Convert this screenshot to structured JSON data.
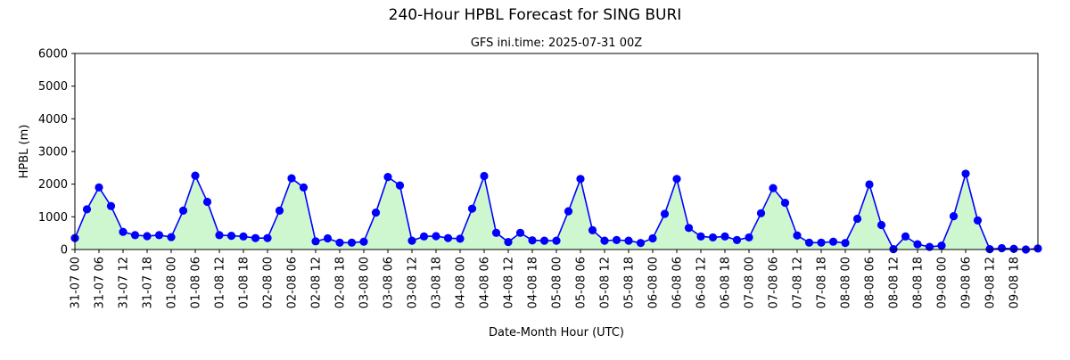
{
  "chart_data": {
    "type": "line",
    "title": "240-Hour HPBL Forecast for SING BURI",
    "subtitle": "GFS ini.time: 2025-07-31 00Z",
    "xlabel": "Date-Month Hour (UTC)",
    "ylabel": "HPBL (m)",
    "ylim": [
      0,
      6000
    ],
    "yticks": [
      0,
      1000,
      2000,
      3000,
      4000,
      5000,
      6000
    ],
    "grid": false,
    "legend": "none",
    "fill_under": true,
    "colors": {
      "line": "#0000ff",
      "marker": "#0000ff",
      "fill": "#cff7cf",
      "axes": "#000000"
    },
    "x": [
      "31-07 00",
      "31-07 03",
      "31-07 06",
      "31-07 09",
      "31-07 12",
      "31-07 15",
      "31-07 18",
      "31-07 21",
      "01-08 00",
      "01-08 03",
      "01-08 06",
      "01-08 09",
      "01-08 12",
      "01-08 15",
      "01-08 18",
      "01-08 21",
      "02-08 00",
      "02-08 03",
      "02-08 06",
      "02-08 09",
      "02-08 12",
      "02-08 15",
      "02-08 18",
      "02-08 21",
      "03-08 00",
      "03-08 03",
      "03-08 06",
      "03-08 09",
      "03-08 12",
      "03-08 15",
      "03-08 18",
      "03-08 21",
      "04-08 00",
      "04-08 03",
      "04-08 06",
      "04-08 09",
      "04-08 12",
      "04-08 15",
      "04-08 18",
      "04-08 21",
      "05-08 00",
      "05-08 03",
      "05-08 06",
      "05-08 09",
      "05-08 12",
      "05-08 15",
      "05-08 18",
      "05-08 21",
      "06-08 00",
      "06-08 03",
      "06-08 06",
      "06-08 09",
      "06-08 12",
      "06-08 15",
      "06-08 18",
      "06-08 21",
      "07-08 00",
      "07-08 03",
      "07-08 06",
      "07-08 09",
      "07-08 12",
      "07-08 15",
      "07-08 18",
      "07-08 21",
      "08-08 00",
      "08-08 03",
      "08-08 06",
      "08-08 09",
      "08-08 12",
      "08-08 15",
      "08-08 18",
      "08-08 21",
      "09-08 00",
      "09-08 03",
      "09-08 06",
      "09-08 09",
      "09-08 12",
      "09-08 15",
      "09-08 18",
      "09-08 21",
      "10-08 00"
    ],
    "xticks": [
      "31-07 00",
      "31-07 06",
      "31-07 12",
      "31-07 18",
      "01-08 00",
      "01-08 06",
      "01-08 12",
      "01-08 18",
      "02-08 00",
      "02-08 06",
      "02-08 12",
      "02-08 18",
      "03-08 00",
      "03-08 06",
      "03-08 12",
      "03-08 18",
      "04-08 00",
      "04-08 06",
      "04-08 12",
      "04-08 18",
      "05-08 00",
      "05-08 06",
      "05-08 12",
      "05-08 18",
      "06-08 00",
      "06-08 06",
      "06-08 12",
      "06-08 18",
      "07-08 00",
      "07-08 06",
      "07-08 12",
      "07-08 18",
      "08-08 00",
      "08-08 06",
      "08-08 12",
      "08-08 18",
      "09-08 00",
      "09-08 06",
      "09-08 12",
      "09-08 18"
    ],
    "values": [
      350,
      1230,
      1900,
      1330,
      540,
      440,
      410,
      440,
      380,
      1190,
      2260,
      1460,
      440,
      420,
      400,
      350,
      350,
      1190,
      2180,
      1900,
      250,
      340,
      210,
      210,
      240,
      1130,
      2220,
      1960,
      270,
      400,
      410,
      350,
      330,
      1250,
      2250,
      510,
      230,
      510,
      280,
      270,
      270,
      1170,
      2160,
      590,
      270,
      290,
      270,
      200,
      340,
      1090,
      2160,
      660,
      400,
      370,
      400,
      290,
      370,
      1110,
      1880,
      1430,
      430,
      210,
      210,
      240,
      200,
      940,
      1990,
      750,
      10,
      400,
      160,
      80,
      120,
      1020,
      2320,
      890,
      10,
      40,
      20,
      0,
      30
    ]
  }
}
